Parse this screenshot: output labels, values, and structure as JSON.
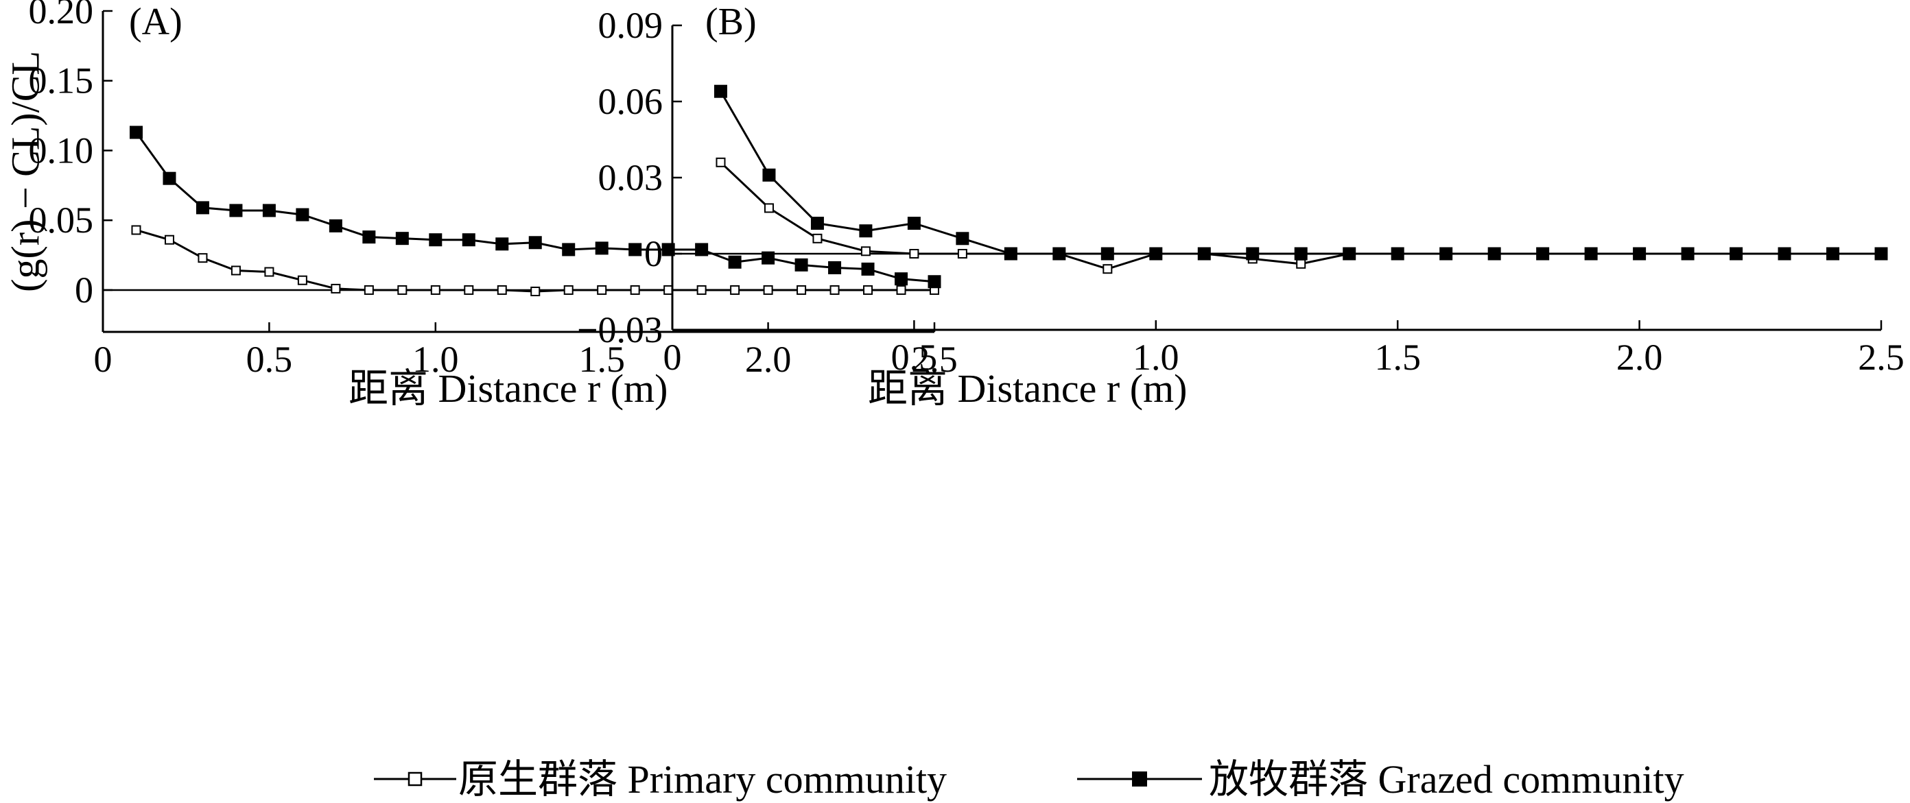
{
  "chart_data": [
    {
      "type": "line",
      "panel_label": "(A)",
      "ylabel": "(g(r) − CL)/CL",
      "xlabel": "距离 Distance r (m)",
      "xlim": [
        0,
        2.5
      ],
      "ylim": [
        -0.03,
        0.2
      ],
      "xticks": [
        0,
        0.5,
        1.0,
        1.5,
        2.0,
        2.5
      ],
      "xtick_labels": [
        "0",
        "0.5",
        "1.0",
        "1.5",
        "2.0",
        "2.5"
      ],
      "yticks": [
        0,
        0.05,
        0.1,
        0.15,
        0.2
      ],
      "ytick_labels": [
        "0",
        "0.05",
        "0.10",
        "0.15",
        "0.20"
      ],
      "reference_line": 0,
      "grid": false,
      "x": [
        0.1,
        0.2,
        0.3,
        0.4,
        0.5,
        0.6,
        0.7,
        0.8,
        0.9,
        1.0,
        1.1,
        1.2,
        1.3,
        1.4,
        1.5,
        1.6,
        1.7,
        1.8,
        1.9,
        2.0,
        2.1,
        2.2,
        2.3,
        2.4,
        2.5
      ],
      "series": [
        {
          "name": "原生群落 Primary community",
          "marker": "open-square",
          "values": [
            0.043,
            0.036,
            0.023,
            0.014,
            0.013,
            0.007,
            0.001,
            0,
            0,
            0,
            0,
            0,
            -0.001,
            0,
            0,
            0,
            0,
            0,
            0,
            0,
            0,
            0,
            0,
            0,
            0
          ]
        },
        {
          "name": "放牧群落 Grazed community",
          "marker": "filled-square",
          "values": [
            0.113,
            0.08,
            0.059,
            0.057,
            0.057,
            0.054,
            0.046,
            0.038,
            0.037,
            0.036,
            0.036,
            0.033,
            0.034,
            0.029,
            0.03,
            0.029,
            0.029,
            0.029,
            0.02,
            0.023,
            0.018,
            0.016,
            0.015,
            0.008,
            0.006
          ]
        }
      ]
    },
    {
      "type": "line",
      "panel_label": "(B)",
      "ylabel": "",
      "xlabel": "距离 Distance r (m)",
      "xlim": [
        0,
        2.5
      ],
      "ylim": [
        -0.03,
        0.09
      ],
      "xticks": [
        0,
        0.5,
        1.0,
        1.5,
        2.0,
        2.5
      ],
      "xtick_labels": [
        "0",
        "0.5",
        "1.0",
        "1.5",
        "2.0",
        "2.5"
      ],
      "yticks": [
        -0.03,
        0,
        0.03,
        0.06,
        0.09
      ],
      "ytick_labels": [
        "−0.03",
        "0",
        "0.03",
        "0.06",
        "0.09"
      ],
      "reference_line": 0,
      "grid": false,
      "x": [
        0.1,
        0.2,
        0.3,
        0.4,
        0.5,
        0.6,
        0.7,
        0.8,
        0.9,
        1.0,
        1.1,
        1.2,
        1.3,
        1.4,
        1.5,
        1.6,
        1.7,
        1.8,
        1.9,
        2.0,
        2.1,
        2.2,
        2.3,
        2.4,
        2.5
      ],
      "series": [
        {
          "name": "原生群落 Primary community",
          "marker": "open-square",
          "values": [
            0.036,
            0.018,
            0.006,
            0.001,
            0,
            0,
            0,
            0,
            -0.006,
            0,
            0,
            -0.002,
            -0.004,
            0,
            0,
            0,
            0,
            0,
            0,
            0,
            0,
            0,
            0,
            0,
            0
          ]
        },
        {
          "name": "放牧群落 Grazed community",
          "marker": "filled-square",
          "values": [
            0.064,
            0.031,
            0.012,
            0.009,
            0.012,
            0.006,
            0,
            0,
            0,
            0,
            0,
            0,
            0,
            0,
            0,
            0,
            0,
            0,
            0,
            0,
            0,
            0,
            0,
            0,
            0
          ]
        }
      ]
    }
  ],
  "legend": {
    "placement": "bottom-center",
    "items": [
      {
        "label": "原生群落 Primary community",
        "marker": "open-square"
      },
      {
        "label": "放牧群落 Grazed community",
        "marker": "filled-square"
      }
    ]
  }
}
